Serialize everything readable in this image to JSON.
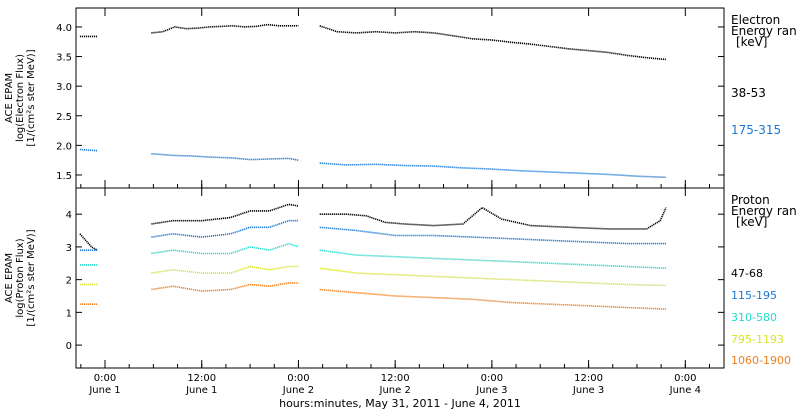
{
  "chart_data": [
    {
      "type": "line",
      "panel": "electron",
      "ylabel": [
        "ACE EPAM",
        "log(Electron Flux)",
        "[1/(cm²s ster MeV)]"
      ],
      "ylim": [
        1.28,
        4.32
      ],
      "yticks": [
        1.5,
        2.0,
        2.5,
        3.0,
        3.5,
        4.0
      ],
      "ytick_labels": [
        "1.5",
        "2.0",
        "2.5",
        "3.0",
        "3.5",
        "4.0"
      ],
      "legend_title": [
        "Electron",
        "Energy ran",
        "[keV]"
      ],
      "series": [
        {
          "name": "38-53",
          "color": "#000000",
          "segments": [
            {
              "x": [
                -0.13,
                -0.04
              ],
              "y": [
                3.84,
                3.84
              ]
            },
            {
              "x": [
                0.24,
                0.3,
                0.36,
                0.42,
                0.48,
                0.54,
                0.6,
                0.66,
                0.72,
                0.78,
                0.84,
                0.9,
                1.0
              ],
              "y": [
                3.9,
                3.92,
                4.0,
                3.97,
                3.98,
                4.0,
                4.01,
                4.02,
                4.0,
                4.01,
                4.04,
                4.02,
                4.02
              ]
            },
            {
              "x": [
                1.11,
                1.2,
                1.3,
                1.4,
                1.5,
                1.6,
                1.7,
                1.8,
                1.9,
                2.0,
                2.1,
                2.2,
                2.3,
                2.4,
                2.5,
                2.6,
                2.7,
                2.8,
                2.9
              ],
              "y": [
                4.02,
                3.92,
                3.9,
                3.92,
                3.9,
                3.92,
                3.9,
                3.85,
                3.8,
                3.78,
                3.74,
                3.71,
                3.67,
                3.63,
                3.6,
                3.57,
                3.52,
                3.48,
                3.45
              ]
            }
          ]
        },
        {
          "name": "175-315",
          "color": "#1a78d4",
          "segments": [
            {
              "x": [
                -0.13,
                -0.04
              ],
              "y": [
                1.93,
                1.91
              ]
            },
            {
              "x": [
                0.24,
                0.35,
                0.45,
                0.55,
                0.65,
                0.75,
                0.85,
                0.95,
                1.0
              ],
              "y": [
                1.86,
                1.83,
                1.82,
                1.8,
                1.79,
                1.76,
                1.77,
                1.78,
                1.75
              ]
            },
            {
              "x": [
                1.11,
                1.25,
                1.4,
                1.55,
                1.7,
                1.85,
                2.0,
                2.15,
                2.3,
                2.45,
                2.6,
                2.75,
                2.9
              ],
              "y": [
                1.7,
                1.67,
                1.68,
                1.66,
                1.65,
                1.62,
                1.6,
                1.57,
                1.55,
                1.53,
                1.51,
                1.48,
                1.46
              ]
            }
          ]
        }
      ]
    },
    {
      "type": "line",
      "panel": "proton",
      "ylabel": [
        "ACE EPAM",
        "log(Proton Flux)",
        "[1/(cm²s ster MeV)]"
      ],
      "ylim": [
        -0.7,
        4.8
      ],
      "yticks": [
        0,
        1,
        2,
        3,
        4
      ],
      "ytick_labels": [
        "0",
        "1",
        "2",
        "3",
        "4"
      ],
      "legend_title": [
        "Proton",
        "Energy ran",
        "[keV]"
      ],
      "series": [
        {
          "name": "47-68",
          "color": "#000000",
          "segments": [
            {
              "x": [
                -0.13,
                -0.1,
                -0.07,
                -0.04
              ],
              "y": [
                3.4,
                3.2,
                3.0,
                2.9
              ]
            },
            {
              "x": [
                0.24,
                0.35,
                0.5,
                0.65,
                0.75,
                0.85,
                0.95,
                1.0
              ],
              "y": [
                3.7,
                3.8,
                3.8,
                3.9,
                4.1,
                4.1,
                4.3,
                4.25
              ]
            },
            {
              "x": [
                1.11,
                1.25,
                1.35,
                1.45,
                1.55,
                1.7,
                1.85,
                1.95,
                2.05,
                2.2,
                2.4,
                2.6,
                2.8,
                2.87,
                2.9
              ],
              "y": [
                4.0,
                4.0,
                3.95,
                3.75,
                3.7,
                3.65,
                3.7,
                4.2,
                3.85,
                3.65,
                3.6,
                3.55,
                3.55,
                3.8,
                4.2
              ]
            }
          ]
        },
        {
          "name": "115-195",
          "color": "#1a78d4",
          "segments": [
            {
              "x": [
                -0.13,
                -0.04
              ],
              "y": [
                2.9,
                2.9
              ]
            },
            {
              "x": [
                0.24,
                0.35,
                0.5,
                0.65,
                0.75,
                0.85,
                0.95,
                1.0
              ],
              "y": [
                3.3,
                3.4,
                3.3,
                3.4,
                3.6,
                3.6,
                3.8,
                3.8
              ]
            },
            {
              "x": [
                1.11,
                1.3,
                1.5,
                1.7,
                1.9,
                2.1,
                2.3,
                2.5,
                2.7,
                2.9
              ],
              "y": [
                3.6,
                3.5,
                3.35,
                3.35,
                3.3,
                3.25,
                3.2,
                3.15,
                3.1,
                3.1
              ]
            }
          ]
        },
        {
          "name": "310-580",
          "color": "#22dccc",
          "segments": [
            {
              "x": [
                -0.13,
                -0.04
              ],
              "y": [
                2.45,
                2.45
              ]
            },
            {
              "x": [
                0.24,
                0.35,
                0.5,
                0.65,
                0.75,
                0.85,
                0.95,
                1.0
              ],
              "y": [
                2.8,
                2.9,
                2.8,
                2.8,
                3.0,
                2.9,
                3.1,
                3.0
              ]
            },
            {
              "x": [
                1.11,
                1.3,
                1.5,
                1.7,
                1.9,
                2.1,
                2.3,
                2.5,
                2.7,
                2.9
              ],
              "y": [
                2.9,
                2.75,
                2.7,
                2.65,
                2.6,
                2.55,
                2.5,
                2.45,
                2.4,
                2.35
              ]
            }
          ]
        },
        {
          "name": "795-1193",
          "color": "#d8e428",
          "segments": [
            {
              "x": [
                -0.13,
                -0.04
              ],
              "y": [
                1.85,
                1.85
              ]
            },
            {
              "x": [
                0.24,
                0.35,
                0.5,
                0.65,
                0.75,
                0.85,
                0.95,
                1.0
              ],
              "y": [
                2.2,
                2.3,
                2.2,
                2.2,
                2.4,
                2.3,
                2.4,
                2.4
              ]
            },
            {
              "x": [
                1.11,
                1.3,
                1.5,
                1.7,
                1.9,
                2.1,
                2.3,
                2.5,
                2.7,
                2.9
              ],
              "y": [
                2.35,
                2.2,
                2.15,
                2.1,
                2.05,
                2.0,
                1.95,
                1.9,
                1.85,
                1.82
              ]
            }
          ]
        },
        {
          "name": "1060-1900",
          "color": "#f08020",
          "segments": [
            {
              "x": [
                -0.13,
                -0.04
              ],
              "y": [
                1.25,
                1.25
              ]
            },
            {
              "x": [
                0.24,
                0.35,
                0.5,
                0.65,
                0.75,
                0.85,
                0.95,
                1.0
              ],
              "y": [
                1.7,
                1.8,
                1.65,
                1.7,
                1.85,
                1.8,
                1.9,
                1.9
              ]
            },
            {
              "x": [
                1.11,
                1.3,
                1.5,
                1.7,
                1.9,
                2.1,
                2.3,
                2.5,
                2.7,
                2.9
              ],
              "y": [
                1.7,
                1.6,
                1.5,
                1.45,
                1.4,
                1.3,
                1.25,
                1.2,
                1.15,
                1.1
              ]
            }
          ]
        }
      ]
    }
  ],
  "x_axis": {
    "xlim": [
      -0.15,
      3.2
    ],
    "xlabel": "hours:minutes, May 31, 2011 - June  4, 2011",
    "ticks": [
      {
        "x": 0.0,
        "time": "0:00",
        "date": "June 1"
      },
      {
        "x": 0.5,
        "time": "12:00",
        "date": "June 1"
      },
      {
        "x": 1.0,
        "time": "0:00",
        "date": "June 2"
      },
      {
        "x": 1.5,
        "time": "12:00",
        "date": "June 2"
      },
      {
        "x": 2.0,
        "time": "0:00",
        "date": "June 3"
      },
      {
        "x": 2.5,
        "time": "12:00",
        "date": "June 3"
      },
      {
        "x": 3.0,
        "time": "0:00",
        "date": "June 4"
      }
    ],
    "minor_step": 0.125
  }
}
